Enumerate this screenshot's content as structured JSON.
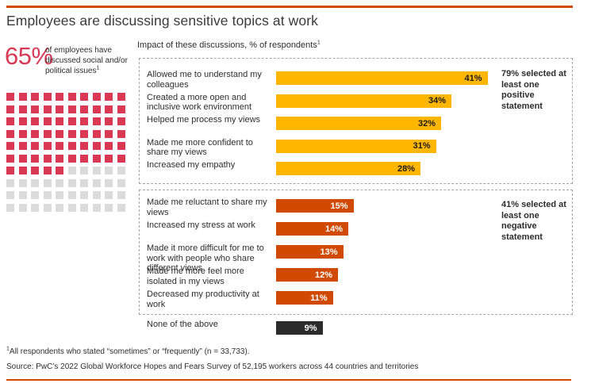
{
  "colors": {
    "accent_orange": "#D04A02",
    "positive_bar": "#FFB600",
    "negative_bar": "#D04A02",
    "none_bar": "#2B2B2B",
    "waffle_filled": "#D93954",
    "waffle_empty": "#DBDBDB",
    "stat_value": "#D93954"
  },
  "title": "Employees are discussing sensitive topics at work",
  "stat": {
    "value": "65%",
    "caption": "of employees have discussed social and/or political issues",
    "footnote_marker": "1"
  },
  "waffle": {
    "total": 100,
    "filled": 65,
    "rows": 10,
    "cols": 10
  },
  "chart_header": {
    "text": "Impact of these discussions, % of respondents",
    "footnote_marker": "1"
  },
  "chart_data": {
    "type": "bar",
    "orientation": "horizontal",
    "title": "Impact of these discussions, % of respondents",
    "unit": "%",
    "xlim": [
      0,
      45
    ],
    "grid": false,
    "groups": [
      {
        "name": "positive",
        "annotation": "79% selected at least one positive statement",
        "bar_color": "#FFB600",
        "value_text_color": "#1a1a1a",
        "categories": [
          "Allowed me to understand my colleagues",
          "Created a more open and inclusive work environment",
          "Helped me process my views",
          "Made me more confident to share my views",
          "Increased my empathy"
        ],
        "values": [
          41,
          34,
          32,
          31,
          28
        ],
        "value_labels": [
          "41%",
          "34%",
          "32%",
          "31%",
          "28%"
        ]
      },
      {
        "name": "negative",
        "annotation": "41% selected at least one negative statement",
        "bar_color": "#D04A02",
        "value_text_color": "#ffffff",
        "categories": [
          "Made me reluctant to share my views",
          "Increased my stress at work",
          "Made it more difficult for me to work with people who share different views",
          "Made me more feel more isolated in my views",
          "Decreased my productivity at work"
        ],
        "values": [
          15,
          14,
          13,
          12,
          11
        ],
        "value_labels": [
          "15%",
          "14%",
          "13%",
          "12%",
          "11%"
        ]
      },
      {
        "name": "none",
        "annotation": "",
        "bar_color": "#2B2B2B",
        "value_text_color": "#ffffff",
        "categories": [
          "None of the above"
        ],
        "values": [
          9
        ],
        "value_labels": [
          "9%"
        ]
      }
    ],
    "waffle_data": {
      "filled_percent": 65,
      "label": "65% of employees have discussed social and/or political issues"
    }
  },
  "footnotes": {
    "fn1_marker": "1",
    "fn1_text": "All respondents who stated “sometimes” or “frequently” (n = 33,733).",
    "fn2_text": "Source: PwC’s 2022 Global Workforce Hopes and Fears Survey of 52,195 workers across 44 countries and territories"
  }
}
